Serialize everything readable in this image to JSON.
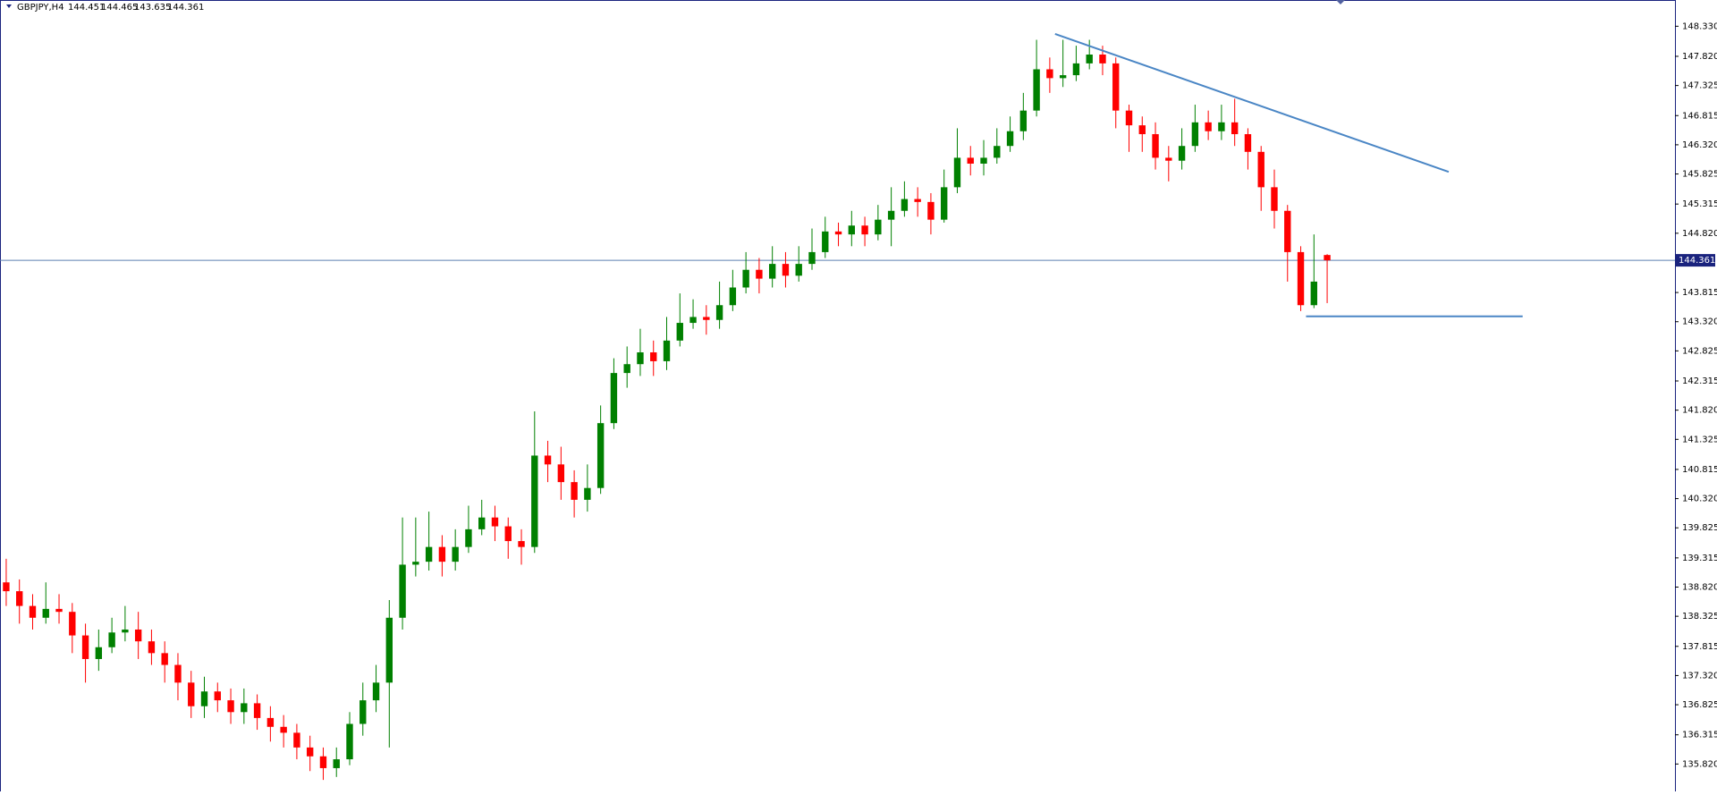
{
  "chart_data": {
    "type": "candlestick",
    "symbol": "GBPJPY,H4",
    "open": [
      138.9,
      138.75,
      138.5,
      138.3,
      138.45,
      138.4,
      138.0,
      137.6,
      137.8,
      138.05,
      138.1,
      137.9,
      137.7,
      137.5,
      137.2,
      136.8,
      137.05,
      136.9,
      136.7,
      136.85,
      136.6,
      136.45,
      136.35,
      136.1,
      135.95,
      135.75,
      135.9,
      136.5,
      136.9,
      137.2,
      138.3,
      139.2,
      139.25,
      139.5,
      139.25,
      139.5,
      139.8,
      140.0,
      139.85,
      139.6,
      139.5,
      141.05,
      140.9,
      140.6,
      140.3,
      140.5,
      141.6,
      142.45,
      142.6,
      142.8,
      142.65,
      143.0,
      143.3,
      143.4,
      143.35,
      143.6,
      143.9,
      144.2,
      144.05,
      144.3,
      144.1,
      144.3,
      144.5,
      144.85,
      144.8,
      144.95,
      144.8,
      145.05,
      145.2,
      145.4,
      145.35,
      145.05,
      145.6,
      146.1,
      146.0,
      146.1,
      146.3,
      146.55,
      146.9,
      147.6,
      147.45,
      147.5,
      147.7,
      147.85,
      147.7,
      146.9,
      146.65,
      146.5,
      146.1,
      146.05,
      146.3,
      146.7,
      146.55,
      146.7,
      146.5,
      146.2,
      145.6,
      145.2,
      144.5,
      143.6,
      144.451
    ],
    "high": [
      139.3,
      138.95,
      138.7,
      138.9,
      138.7,
      138.55,
      138.2,
      138.1,
      138.3,
      138.5,
      138.4,
      138.1,
      137.9,
      137.7,
      137.4,
      137.3,
      137.2,
      137.1,
      137.1,
      137.0,
      136.8,
      136.65,
      136.5,
      136.3,
      136.1,
      136.1,
      136.7,
      137.2,
      137.5,
      138.6,
      140.0,
      140.0,
      140.1,
      139.7,
      139.8,
      140.2,
      140.3,
      140.2,
      140.0,
      139.8,
      141.8,
      141.3,
      141.2,
      140.8,
      140.9,
      141.9,
      142.7,
      142.9,
      143.2,
      143.0,
      143.4,
      143.8,
      143.7,
      143.6,
      144.0,
      144.2,
      144.5,
      144.4,
      144.6,
      144.5,
      144.6,
      144.9,
      145.1,
      145.0,
      145.2,
      145.1,
      145.3,
      145.6,
      145.7,
      145.6,
      145.5,
      145.9,
      146.6,
      146.3,
      146.4,
      146.6,
      146.8,
      147.2,
      148.1,
      147.8,
      148.1,
      148.0,
      148.1,
      148.0,
      147.8,
      147.0,
      146.8,
      146.7,
      146.3,
      146.6,
      147.0,
      146.9,
      147.0,
      147.1,
      146.6,
      146.3,
      145.9,
      145.3,
      144.6,
      144.8,
      144.465
    ],
    "low": [
      138.5,
      138.2,
      138.1,
      138.2,
      138.2,
      137.7,
      137.2,
      137.4,
      137.7,
      137.9,
      137.6,
      137.5,
      137.2,
      136.9,
      136.6,
      136.6,
      136.7,
      136.5,
      136.5,
      136.4,
      136.2,
      136.1,
      135.9,
      135.7,
      135.55,
      135.6,
      135.8,
      136.3,
      136.7,
      136.1,
      138.1,
      139.0,
      139.1,
      139.0,
      139.1,
      139.4,
      139.7,
      139.6,
      139.3,
      139.2,
      139.4,
      140.6,
      140.3,
      140.0,
      140.1,
      140.4,
      141.5,
      142.2,
      142.4,
      142.4,
      142.5,
      142.9,
      143.2,
      143.1,
      143.2,
      143.5,
      143.8,
      143.8,
      143.9,
      143.9,
      144.0,
      144.2,
      144.4,
      144.6,
      144.6,
      144.6,
      144.7,
      144.6,
      145.1,
      145.1,
      144.8,
      145.0,
      145.5,
      145.8,
      145.8,
      146.0,
      146.2,
      146.4,
      146.8,
      147.2,
      147.3,
      147.4,
      147.6,
      147.5,
      146.6,
      146.2,
      146.2,
      145.9,
      145.7,
      145.9,
      146.2,
      146.4,
      146.4,
      146.3,
      145.9,
      145.2,
      144.9,
      144.0,
      143.5,
      143.55,
      143.635
    ],
    "close": [
      138.75,
      138.5,
      138.3,
      138.45,
      138.4,
      138.0,
      137.6,
      137.8,
      138.05,
      138.1,
      137.9,
      137.7,
      137.5,
      137.2,
      136.8,
      137.05,
      136.9,
      136.7,
      136.85,
      136.6,
      136.45,
      136.35,
      136.1,
      135.95,
      135.75,
      135.9,
      136.5,
      136.9,
      137.2,
      138.3,
      139.2,
      139.25,
      139.5,
      139.25,
      139.5,
      139.8,
      140.0,
      139.85,
      139.6,
      139.5,
      141.05,
      140.9,
      140.6,
      140.3,
      140.5,
      141.6,
      142.45,
      142.6,
      142.8,
      142.65,
      143.0,
      143.3,
      143.4,
      143.35,
      143.6,
      143.9,
      144.2,
      144.05,
      144.3,
      144.1,
      144.3,
      144.5,
      144.85,
      144.8,
      144.95,
      144.8,
      145.05,
      145.2,
      145.4,
      145.35,
      145.05,
      145.6,
      146.1,
      146.0,
      146.1,
      146.3,
      146.55,
      146.9,
      147.6,
      147.45,
      147.5,
      147.7,
      147.85,
      147.7,
      146.9,
      146.65,
      146.5,
      146.1,
      146.05,
      146.3,
      146.7,
      146.55,
      146.7,
      146.5,
      146.2,
      145.6,
      145.2,
      144.5,
      143.6,
      144.0,
      144.361
    ],
    "up_color": "#008000",
    "down_color": "#ff0000",
    "xlim": [
      -0.47,
      126.33
    ],
    "ylim": [
      135.355,
      148.775
    ],
    "yticks": [
      {
        "value": 148.33,
        "label": "148.330"
      },
      147.325,
      {
        "value": 147.82,
        "label": "147.820"
      },
      146.815,
      {
        "value": 146.32,
        "label": "146.320"
      },
      145.825,
      145.315,
      {
        "value": 144.82,
        "label": "144.820"
      },
      143.815,
      {
        "value": 143.32,
        "label": "143.320"
      },
      142.825,
      142.315,
      {
        "value": 141.82,
        "label": "141.820"
      },
      141.325,
      140.815,
      {
        "value": 140.32,
        "label": "140.320"
      },
      139.825,
      139.315,
      {
        "value": 138.82,
        "label": "138.820"
      },
      138.325,
      137.815,
      {
        "value": 137.32,
        "label": "137.320"
      },
      136.825,
      136.315,
      {
        "value": 135.82,
        "label": "135.820"
      }
    ],
    "trendlines": [
      {
        "x": [
          79.4,
          109.2
        ],
        "y": [
          148.2,
          145.86
        ],
        "color": "#4a86c5"
      },
      {
        "x": [
          98.4,
          114.8
        ],
        "y": [
          143.41,
          143.41
        ],
        "color": "#4a86c5"
      }
    ]
  }
}
